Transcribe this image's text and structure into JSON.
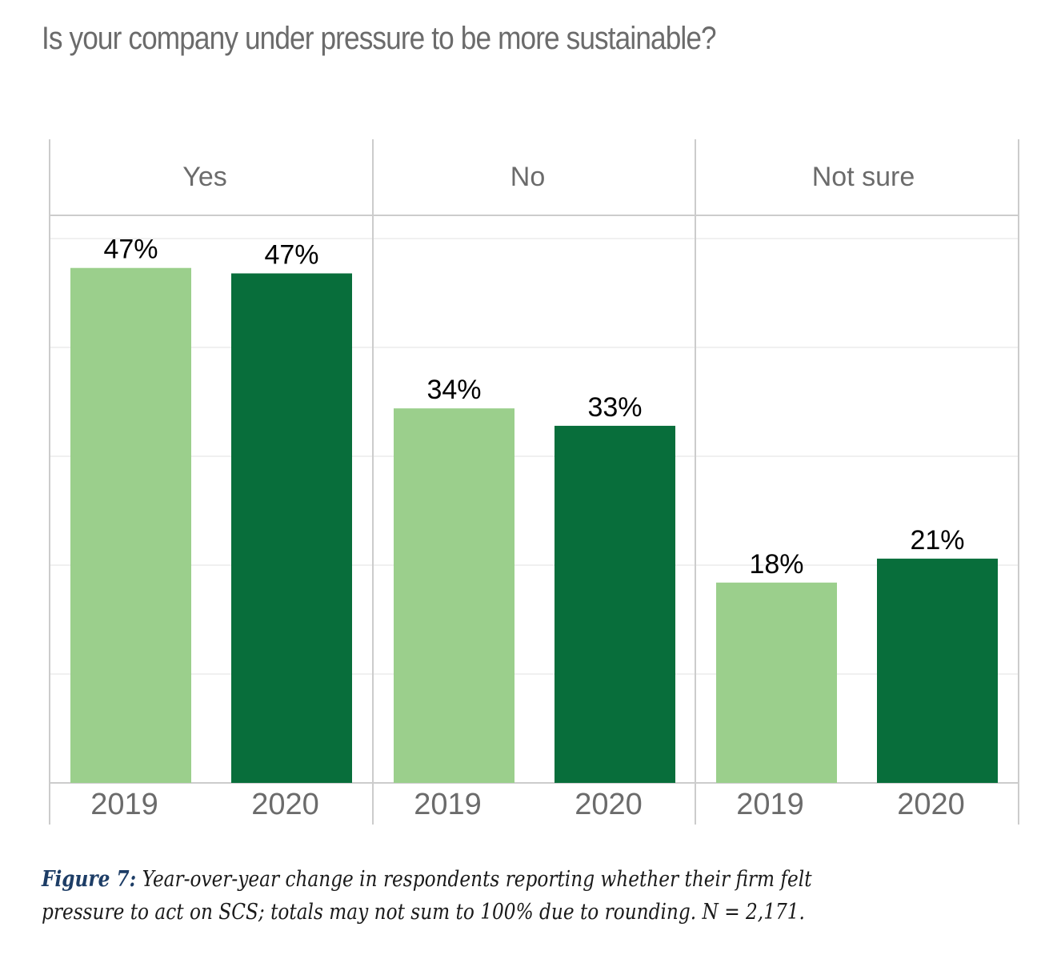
{
  "title": "Is your company under pressure to be more sustainable?",
  "caption": {
    "label": "Figure 7:",
    "line1": " Year-over-year change in respondents reporting whether their firm felt",
    "line2": "pressure to act on SCS; totals may not sum to 100% due to rounding. N = 2,171."
  },
  "colors": {
    "2019": "#9bcf8c",
    "2020": "#086e3b",
    "grid": "#ececec",
    "panel_border": "#cccccc",
    "label_text": "#6b6b6b",
    "value_text": "#000000"
  },
  "chart_data": {
    "type": "bar",
    "title": "Is your company under pressure to be more sustainable?",
    "xlabel": "",
    "ylabel": "",
    "ylim": [
      0,
      50
    ],
    "grid": true,
    "legend": "none",
    "panels": [
      "Yes",
      "No",
      "Not sure"
    ],
    "categories": [
      "2019",
      "2020"
    ],
    "series": [
      {
        "panel": "Yes",
        "values": [
          47.3,
          46.8
        ],
        "labels": [
          "47%",
          "47%"
        ]
      },
      {
        "panel": "No",
        "values": [
          34.4,
          32.8
        ],
        "labels": [
          "34%",
          "33%"
        ]
      },
      {
        "panel": "Not sure",
        "values": [
          18.4,
          20.6
        ],
        "labels": [
          "18%",
          "21%"
        ]
      }
    ]
  }
}
